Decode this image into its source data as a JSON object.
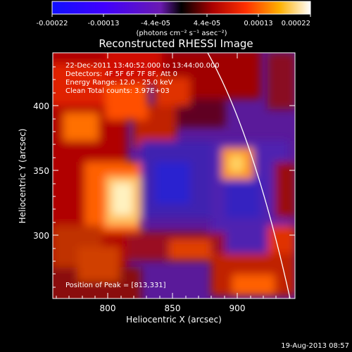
{
  "colorbar": {
    "tick_labels": [
      "-0.00022",
      "-0.00013",
      "-4.4e-05",
      "4.4e-05",
      "0.00013",
      "0.00022"
    ],
    "units_label": "(photons cm⁻² s⁻¹ asec⁻²)"
  },
  "image": {
    "title": "Reconstructed RHESSI Image",
    "info_lines": [
      "22-Dec-2011 13:40:52.000 to 13:44:00.000",
      "Detectors: 4F 5F 6F 7F 8F, Att 0",
      "Energy Range: 12.0 - 25.0 keV",
      "Clean    Total counts: 3.97E+03"
    ],
    "peak_label": "Position of Peak = [813,331]",
    "xlabel": "Heliocentric X (arcsec)",
    "ylabel": "Heliocentric Y (arcsec)",
    "xticks": [
      "800",
      "850",
      "900"
    ],
    "yticks": [
      "400",
      "350",
      "300"
    ]
  },
  "footer": {
    "timestamp": "19-Aug-2013 08:57"
  },
  "colors": {
    "background": "#000000",
    "text": "#ffffff",
    "limb": "#ffffff"
  }
}
